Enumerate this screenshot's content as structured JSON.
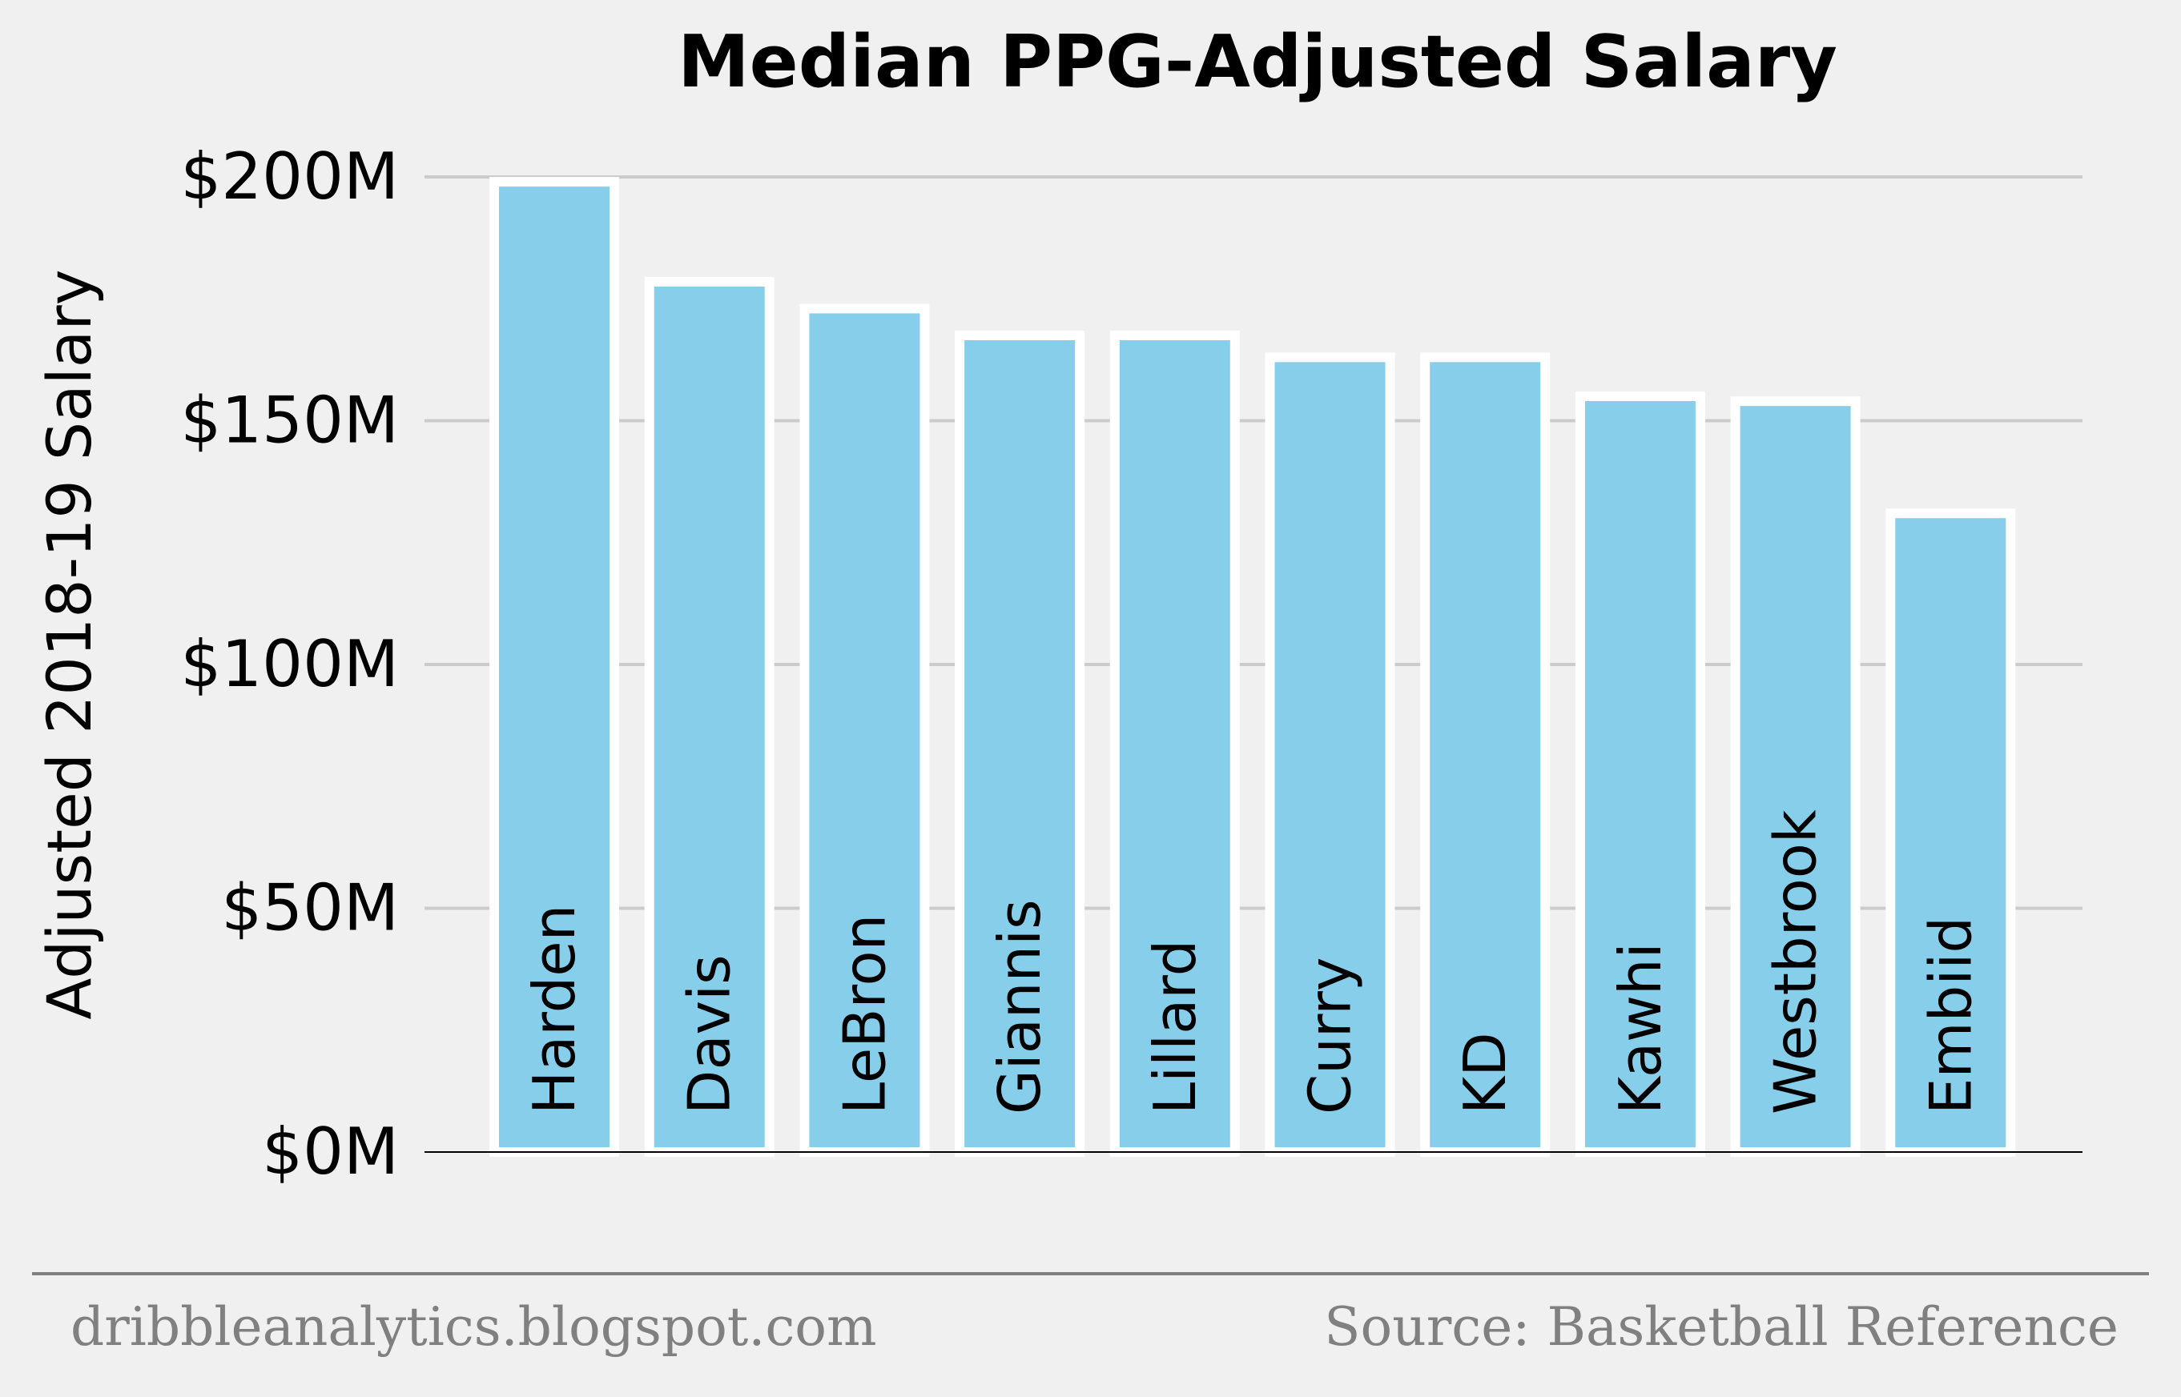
{
  "chart_data": {
    "type": "bar",
    "title": "Median PPG-Adjusted Salary",
    "ylabel": "Adjusted 2018-19 Salary",
    "xlabel": "",
    "categories": [
      "Harden",
      "Davis",
      "LeBron",
      "Giannis",
      "Lillard",
      "Curry",
      "KD",
      "Kawhi",
      "Westbrook",
      "Embiid"
    ],
    "values": [
      199,
      178.5,
      173,
      167.5,
      167.5,
      163,
      163,
      155,
      154,
      131
    ],
    "ylim": [
      0,
      200
    ],
    "yticks": [
      0,
      50,
      100,
      150,
      200
    ],
    "ytick_labels": [
      "$0M",
      "$50M",
      "$100M",
      "$150M",
      "$200M"
    ],
    "grid": "horizontal",
    "bar_labels_inside": true
  },
  "footer": {
    "left": "dribbleanalytics.blogspot.com",
    "right": "Source: Basketball Reference"
  },
  "colors": {
    "background": "#f0f0f0",
    "bar_fill": "#87ceeb",
    "bar_edge": "#ffffff",
    "grid": "#cbcbcb",
    "footer_text": "#808080",
    "text": "#000000"
  }
}
